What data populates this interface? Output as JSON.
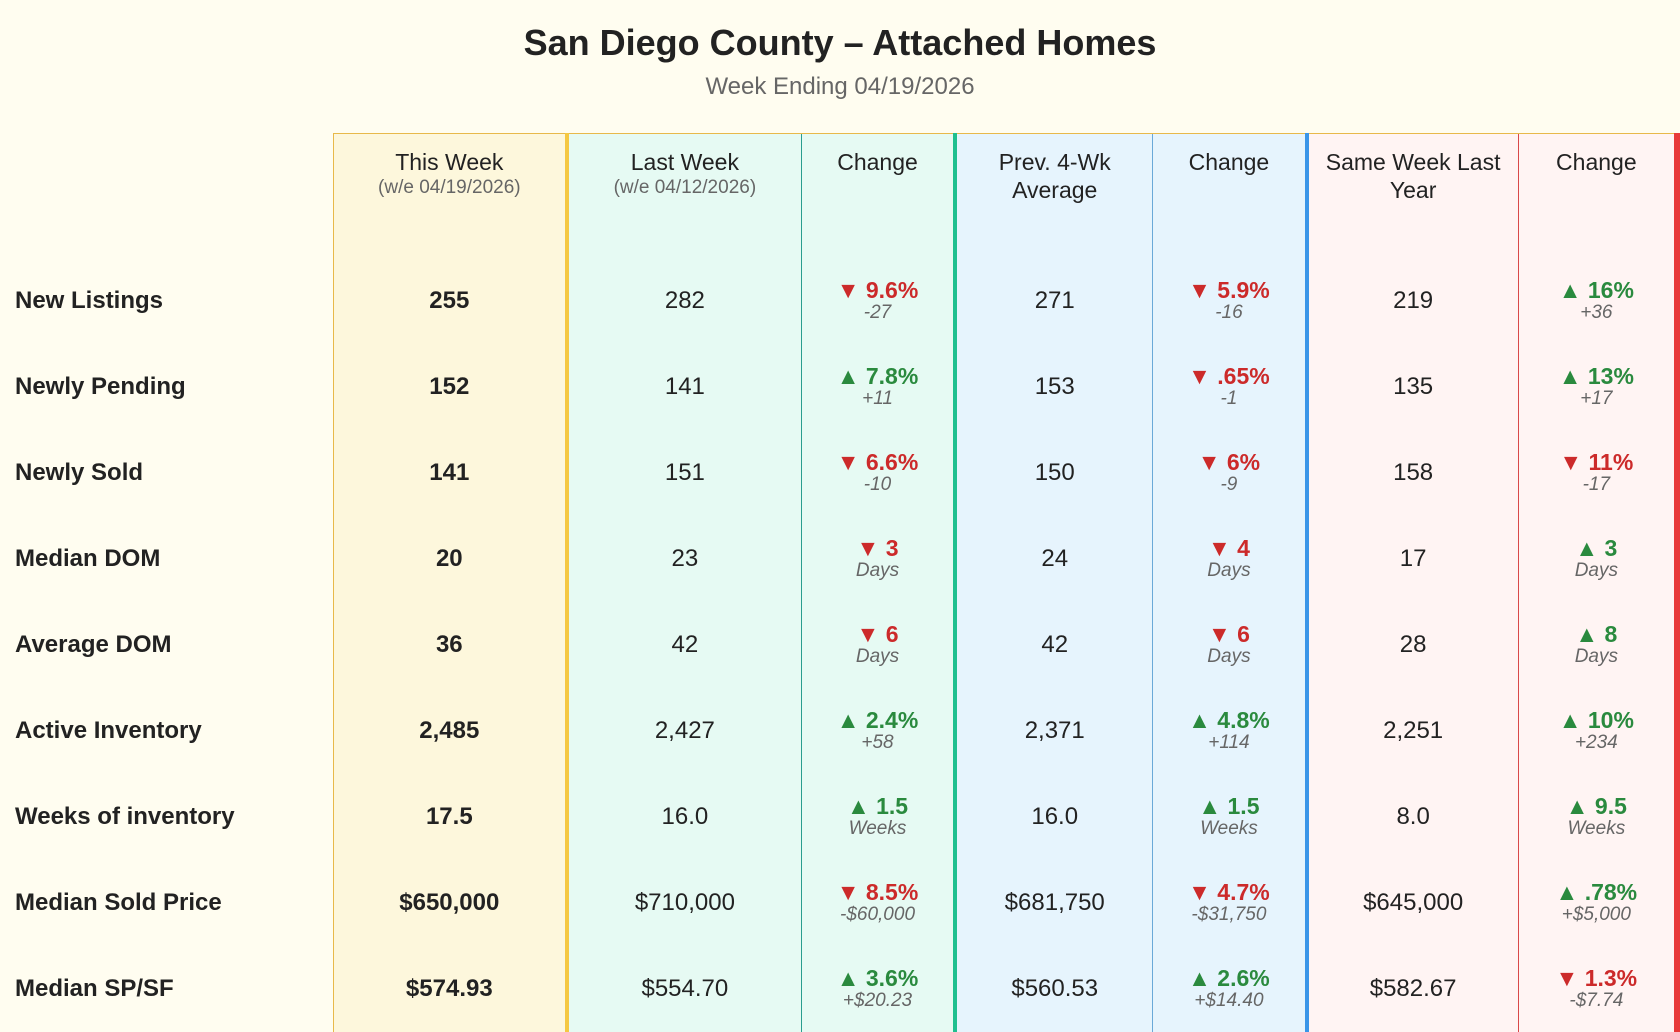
{
  "title": "San Diego County – Attached Homes",
  "subtitle": "Week Ending 04/19/2026",
  "colors": {
    "up": "#2a8a3e",
    "down": "#cc2a2a"
  },
  "headers": [
    {
      "main": "This Week",
      "sub": "(w/e 04/19/2026)"
    },
    {
      "main": "Last Week",
      "sub": "(w/e 04/12/2026)"
    },
    {
      "main": "Change",
      "sub": ""
    },
    {
      "main": "Prev. 4-Wk Average",
      "sub": ""
    },
    {
      "main": "Change",
      "sub": ""
    },
    {
      "main": "Same Week Last Year",
      "sub": ""
    },
    {
      "main": "Change",
      "sub": ""
    }
  ],
  "rows": [
    {
      "label": "New Listings",
      "this": "255",
      "last": "282",
      "ch1": {
        "dir": "down",
        "v": "9.6%",
        "d": "-27"
      },
      "avg": "271",
      "ch2": {
        "dir": "down",
        "v": "5.9%",
        "d": "-16"
      },
      "ly": "219",
      "ch3": {
        "dir": "up",
        "v": "16%",
        "d": "+36"
      }
    },
    {
      "label": "Newly Pending",
      "this": "152",
      "last": "141",
      "ch1": {
        "dir": "up",
        "v": "7.8%",
        "d": "+11"
      },
      "avg": "153",
      "ch2": {
        "dir": "down",
        "v": ".65%",
        "d": "-1"
      },
      "ly": "135",
      "ch3": {
        "dir": "up",
        "v": "13%",
        "d": "+17"
      }
    },
    {
      "label": "Newly Sold",
      "this": "141",
      "last": "151",
      "ch1": {
        "dir": "down",
        "v": "6.6%",
        "d": "-10"
      },
      "avg": "150",
      "ch2": {
        "dir": "down",
        "v": "6%",
        "d": "-9"
      },
      "ly": "158",
      "ch3": {
        "dir": "down",
        "v": "11%",
        "d": "-17"
      }
    },
    {
      "label": "Median DOM",
      "this": "20",
      "last": "23",
      "ch1": {
        "dir": "down",
        "v": "3",
        "d": "Days"
      },
      "avg": "24",
      "ch2": {
        "dir": "down",
        "v": "4",
        "d": "Days"
      },
      "ly": "17",
      "ch3": {
        "dir": "up",
        "v": "3",
        "d": "Days"
      }
    },
    {
      "label": "Average DOM",
      "this": "36",
      "last": "42",
      "ch1": {
        "dir": "down",
        "v": "6",
        "d": "Days"
      },
      "avg": "42",
      "ch2": {
        "dir": "down",
        "v": "6",
        "d": "Days"
      },
      "ly": "28",
      "ch3": {
        "dir": "up",
        "v": "8",
        "d": "Days"
      }
    },
    {
      "label": "Active Inventory",
      "this": "2,485",
      "last": "2,427",
      "ch1": {
        "dir": "up",
        "v": "2.4%",
        "d": "+58"
      },
      "avg": "2,371",
      "ch2": {
        "dir": "up",
        "v": "4.8%",
        "d": "+114"
      },
      "ly": "2,251",
      "ch3": {
        "dir": "up",
        "v": "10%",
        "d": "+234"
      }
    },
    {
      "label": "Weeks of inventory",
      "this": "17.5",
      "last": "16.0",
      "ch1": {
        "dir": "up",
        "v": "1.5",
        "d": "Weeks"
      },
      "avg": "16.0",
      "ch2": {
        "dir": "up",
        "v": "1.5",
        "d": "Weeks"
      },
      "ly": "8.0",
      "ch3": {
        "dir": "up",
        "v": "9.5",
        "d": "Weeks"
      }
    },
    {
      "label": "Median Sold Price",
      "this": "$650,000",
      "last": "$710,000",
      "ch1": {
        "dir": "down",
        "v": "8.5%",
        "d": "-$60,000"
      },
      "avg": "$681,750",
      "ch2": {
        "dir": "down",
        "v": "4.7%",
        "d": "-$31,750"
      },
      "ly": "$645,000",
      "ch3": {
        "dir": "up",
        "v": ".78%",
        "d": "+$5,000"
      }
    },
    {
      "label": "Median SP/SF",
      "this": "$574.93",
      "last": "$554.70",
      "ch1": {
        "dir": "up",
        "v": "3.6%",
        "d": "+$20.23"
      },
      "avg": "$560.53",
      "ch2": {
        "dir": "up",
        "v": "2.6%",
        "d": "+$14.40"
      },
      "ly": "$582.67",
      "ch3": {
        "dir": "down",
        "v": "1.3%",
        "d": "-$7.74"
      }
    }
  ]
}
